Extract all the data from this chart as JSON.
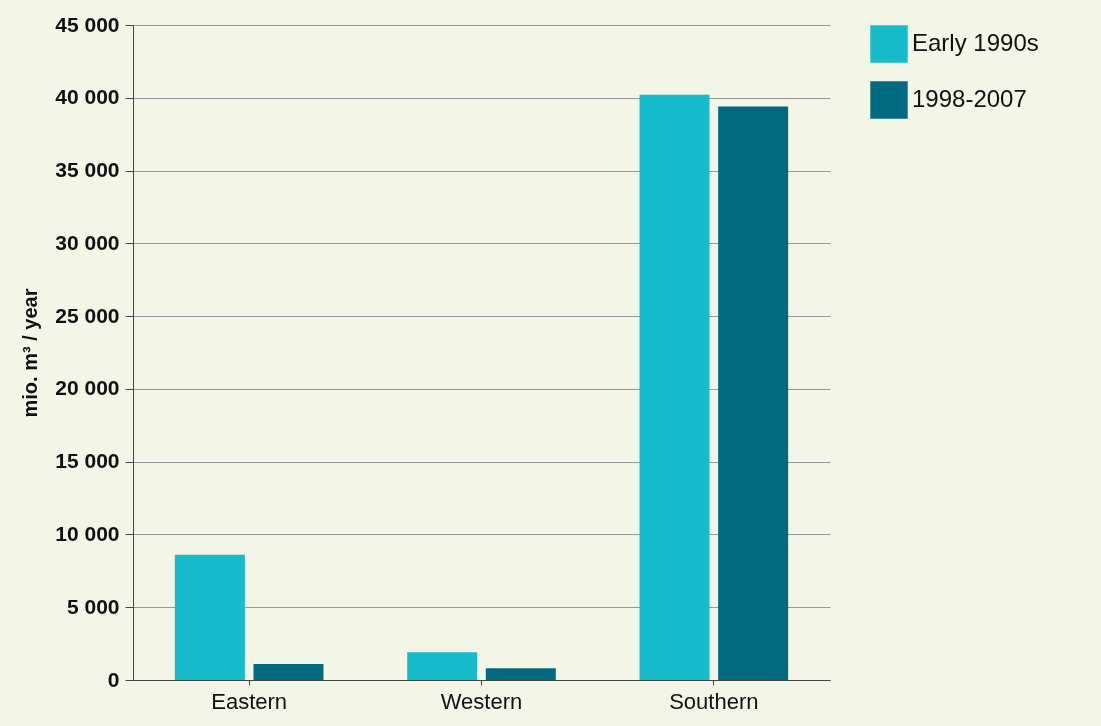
{
  "chart_data": {
    "type": "bar",
    "ylabel": "mio. m³ / year",
    "categories": [
      "Eastern",
      "Western",
      "Southern"
    ],
    "series": [
      {
        "name": "Early 1990s",
        "color": "#17bccb",
        "values": [
          8600,
          1900,
          40200
        ]
      },
      {
        "name": "1998-2007",
        "color": "#006b7f",
        "values": [
          1100,
          800,
          39400
        ]
      }
    ],
    "ylim": [
      0,
      45000
    ],
    "yticks": [
      {
        "value": 0,
        "label": "0"
      },
      {
        "value": 5000,
        "label": "5 000"
      },
      {
        "value": 10000,
        "label": "10 000"
      },
      {
        "value": 15000,
        "label": "15 000"
      },
      {
        "value": 20000,
        "label": "20 000"
      },
      {
        "value": 25000,
        "label": "25 000"
      },
      {
        "value": 30000,
        "label": "30 000"
      },
      {
        "value": 35000,
        "label": "35 000"
      },
      {
        "value": 40000,
        "label": "40 000"
      },
      {
        "value": 45000,
        "label": "45 000"
      }
    ],
    "grid": "y",
    "legend": "right"
  }
}
